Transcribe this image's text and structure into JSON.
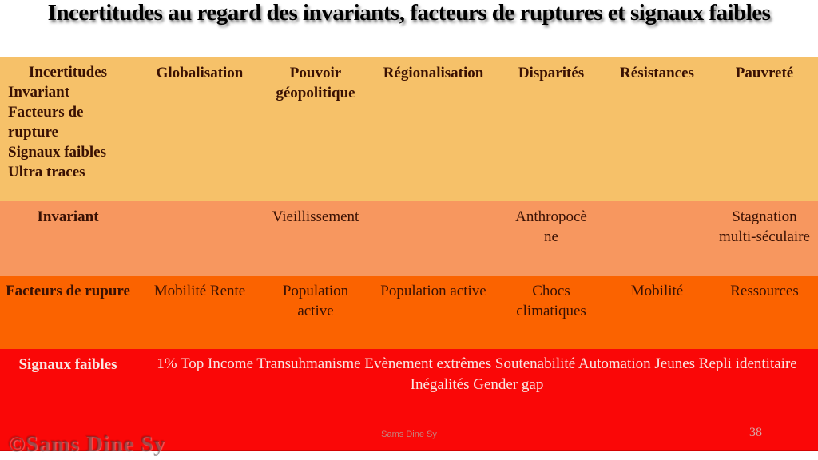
{
  "title": "Incertitudes au regard des invariants, facteurs de ruptures et signaux faibles",
  "table": {
    "header": {
      "corner_title": "Incertitudes",
      "corner_items": [
        "Invariant",
        "Facteurs de rupture",
        "Signaux faibles",
        "Ultra traces"
      ],
      "columns": [
        "Globalisation",
        "Pouvoir géopolitique",
        "Régionalisation",
        "Disparités",
        "Résistances",
        "Pauvreté"
      ]
    },
    "rows": [
      {
        "label": "Invariant",
        "cells": [
          "",
          "Vieillissement",
          "",
          "Anthropocène",
          "",
          "Stagnation multi-séculaire"
        ]
      },
      {
        "label": "Facteurs de rupure",
        "cells": [
          "Mobilité Rente",
          "Population active",
          "Population active",
          "Chocs climatiques",
          "Mobilité",
          "Ressources"
        ]
      },
      {
        "label": "Signaux faibles",
        "merged_text": "1% Top Income Transuhmanisme Evènement extrêmes Soutenabilité Automation Jeunes Repli identitaire Inégalités  Gender gap"
      }
    ]
  },
  "footer": {
    "author": "Sams Dine Sy",
    "page_number": "38",
    "watermark": "©Sams Dine Sy"
  },
  "colors": {
    "header_row_bg": "#f6c169",
    "invariant_row_bg": "#f7975f",
    "facteurs_row_bg": "#fb6300",
    "signaux_row_bg": "#fa0707",
    "dark_text": "#3a1103",
    "light_text": "#f8e7e3",
    "table_bottom_border": "#d40404",
    "title_text": "#000000"
  }
}
